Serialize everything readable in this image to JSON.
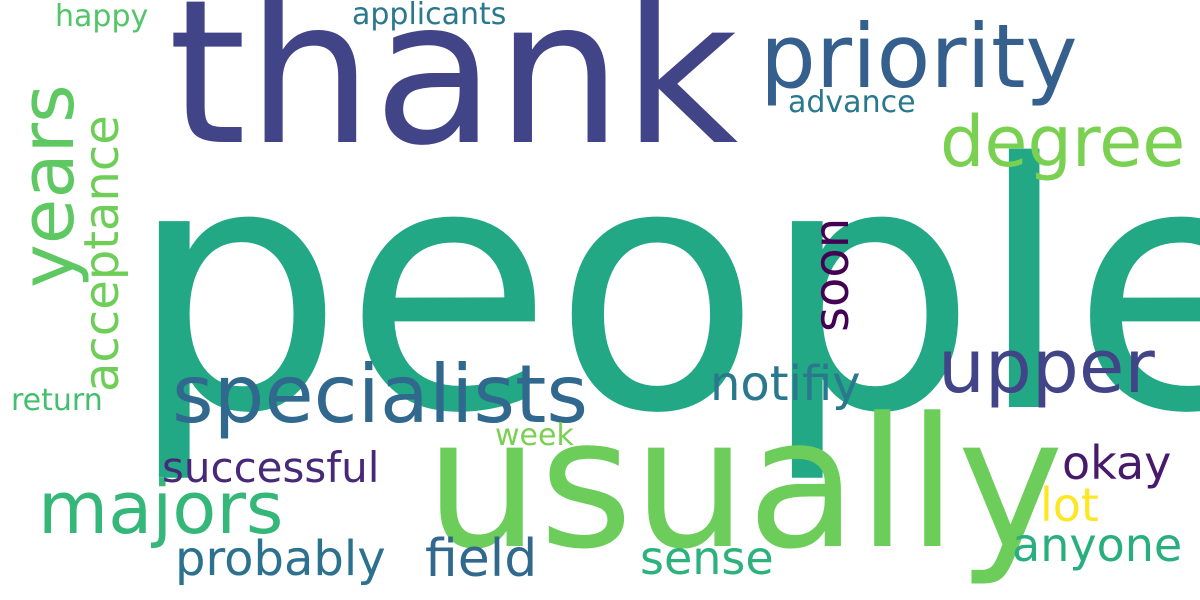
{
  "words": {
    "people": "people",
    "thank": "thank",
    "usually": "usually",
    "priority": "priority",
    "specialists": "specialists",
    "upper": "upper",
    "years": "years",
    "degree": "degree",
    "majors": "majors",
    "acceptance": "acceptance",
    "soon": "soon",
    "notifiy": "notifiy",
    "probably": "probably",
    "field": "field",
    "successful": "successful",
    "sense": "sense",
    "anyone": "anyone",
    "okay": "okay",
    "lot": "lot",
    "applicants": "applicants",
    "advance": "advance",
    "happy": "happy",
    "return": "return",
    "week": "week"
  },
  "colors": {
    "people": "#22a884",
    "thank": "#414487",
    "usually": "#6ccd5a",
    "priority": "#355f8d",
    "specialists": "#31688e",
    "upper": "#414487",
    "years": "#5ec962",
    "degree": "#7ad151",
    "majors": "#35b779",
    "acceptance": "#6ece58",
    "soon": "#440154",
    "notifiy": "#2a788e",
    "probably": "#2c728e",
    "field": "#31688e",
    "successful": "#482878",
    "sense": "#2db27d",
    "anyone": "#29af7f",
    "okay": "#481a6c",
    "lot": "#fde725",
    "applicants": "#2a788e",
    "advance": "#2a788e",
    "happy": "#52c569",
    "return": "#44bf70",
    "week": "#7ad151"
  }
}
